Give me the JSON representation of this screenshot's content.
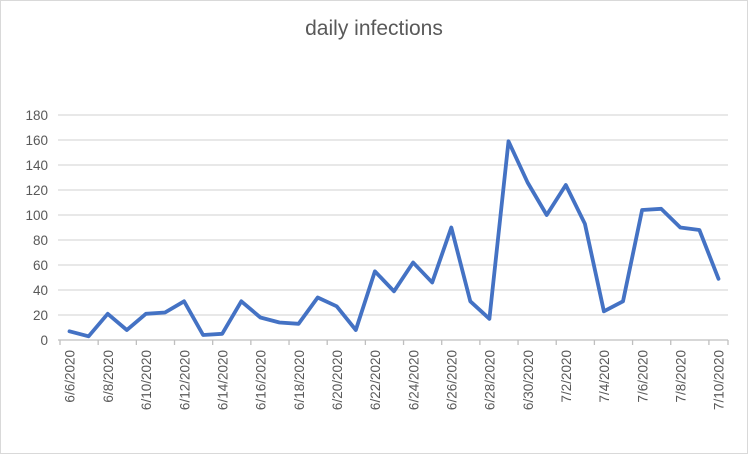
{
  "window": {
    "background": "#ffffff",
    "border_color": "#d9d9d9"
  },
  "chart_data": {
    "type": "line",
    "title": "daily infections",
    "xlabel": "",
    "ylabel": "",
    "x": [
      "6/6/2020",
      "6/7/2020",
      "6/8/2020",
      "6/9/2020",
      "6/10/2020",
      "6/11/2020",
      "6/12/2020",
      "6/13/2020",
      "6/14/2020",
      "6/15/2020",
      "6/16/2020",
      "6/17/2020",
      "6/18/2020",
      "6/19/2020",
      "6/20/2020",
      "6/21/2020",
      "6/22/2020",
      "6/23/2020",
      "6/24/2020",
      "6/25/2020",
      "6/26/2020",
      "6/27/2020",
      "6/28/2020",
      "6/29/2020",
      "6/30/2020",
      "7/1/2020",
      "7/2/2020",
      "7/3/2020",
      "7/4/2020",
      "7/5/2020",
      "7/6/2020",
      "7/7/2020",
      "7/8/2020",
      "7/9/2020",
      "7/10/2020"
    ],
    "series": [
      {
        "name": "daily infections",
        "color": "#4472C4",
        "values": [
          7,
          3,
          21,
          8,
          21,
          22,
          31,
          4,
          5,
          31,
          18,
          14,
          13,
          34,
          27,
          8,
          55,
          39,
          62,
          46,
          90,
          31,
          17,
          159,
          126,
          100,
          124,
          93,
          23,
          31,
          104,
          105,
          90,
          88,
          49
        ]
      }
    ],
    "x_tick_labels": [
      "6/6/2020",
      "6/8/2020",
      "6/10/2020",
      "6/12/2020",
      "6/14/2020",
      "6/16/2020",
      "6/18/2020",
      "6/20/2020",
      "6/22/2020",
      "6/24/2020",
      "6/26/2020",
      "6/28/2020",
      "6/30/2020",
      "7/2/2020",
      "7/4/2020",
      "7/6/2020",
      "7/8/2020",
      "7/10/2020"
    ],
    "x_tick_interval": 2,
    "y_ticks": [
      0,
      20,
      40,
      60,
      80,
      100,
      120,
      140,
      160,
      180
    ],
    "ylim": [
      0,
      180
    ],
    "grid": true,
    "legend_position": "none",
    "colors": {
      "grid": "#d9d9d9",
      "axis": "#bfbfbf",
      "tick_text": "#595959",
      "title_text": "#595959"
    }
  }
}
